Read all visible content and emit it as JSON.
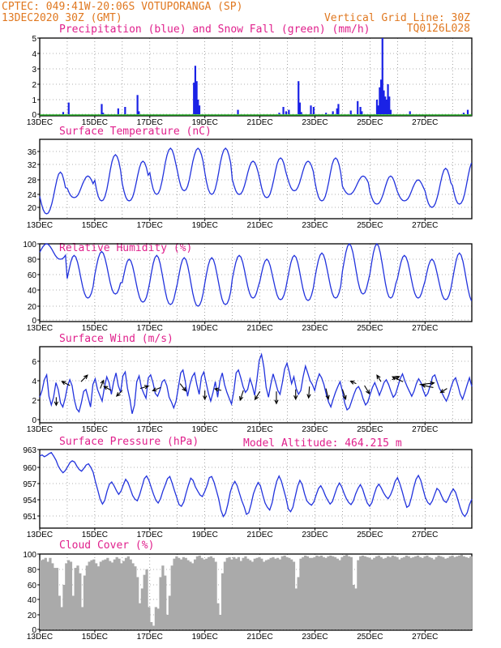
{
  "header": {
    "line1": "CPTEC:   049:41W-20:06S   VOTUPORANGA (SP)",
    "line2_left": "13DEC2020 30Z (GMT)",
    "line2_right": "Vertical Grid Line: 30Z",
    "code": "TQ0126L028"
  },
  "colors": {
    "header": "#e07820",
    "titles": "#e0208c",
    "rain": "#1a22e6",
    "snow": "#22aa22",
    "series": "#2233dd",
    "cloud": "#aaaaaa",
    "wind_arrow": "#000000"
  },
  "chart_data": [
    {
      "type": "bar",
      "title": "Precipitation (blue) and Snow Fall (green) (mm/h)",
      "x_ticks": [
        "13DEC",
        "15DEC",
        "17DEC",
        "19DEC",
        "21DEC",
        "23DEC",
        "25DEC",
        "27DEC"
      ],
      "ylim": [
        0,
        5
      ],
      "y_ticks": [
        "0",
        "1",
        "2",
        "3",
        "4",
        "5"
      ],
      "grid": true,
      "series": [
        {
          "name": "Precipitation",
          "values": [
            [
              0.85,
              0.15
            ],
            [
              1.05,
              0.8
            ],
            [
              2.25,
              0.7
            ],
            [
              2.3,
              0.1
            ],
            [
              2.85,
              0.4
            ],
            [
              3.1,
              0.5
            ],
            [
              3.55,
              1.3
            ],
            [
              3.6,
              0.2
            ],
            [
              5.6,
              2.1
            ],
            [
              5.65,
              3.2
            ],
            [
              5.7,
              2.2
            ],
            [
              5.75,
              1.0
            ],
            [
              5.8,
              0.6
            ],
            [
              7.2,
              0.3
            ],
            [
              8.7,
              0.1
            ],
            [
              8.85,
              0.5
            ],
            [
              8.95,
              0.2
            ],
            [
              9.05,
              0.3
            ],
            [
              9.4,
              2.2
            ],
            [
              9.45,
              0.8
            ],
            [
              9.5,
              0.15
            ],
            [
              9.85,
              0.6
            ],
            [
              9.95,
              0.5
            ],
            [
              10.4,
              0.1
            ],
            [
              10.65,
              0.2
            ],
            [
              10.8,
              0.4
            ],
            [
              10.85,
              0.7
            ],
            [
              11.3,
              0.25
            ],
            [
              11.55,
              0.9
            ],
            [
              11.65,
              0.5
            ],
            [
              11.7,
              0.2
            ],
            [
              12.25,
              1.0
            ],
            [
              12.3,
              0.6
            ],
            [
              12.35,
              1.8
            ],
            [
              12.4,
              2.3
            ],
            [
              12.45,
              5.0
            ],
            [
              12.5,
              1.6
            ],
            [
              12.55,
              1.2
            ],
            [
              12.6,
              1.0
            ],
            [
              12.65,
              2.0
            ],
            [
              12.7,
              1.2
            ],
            [
              12.75,
              0.3
            ],
            [
              13.45,
              0.2
            ],
            [
              15.4,
              0.1
            ],
            [
              15.55,
              0.3
            ]
          ]
        },
        {
          "name": "Snow Fall",
          "values": [
            [
              0,
              0
            ]
          ]
        }
      ]
    },
    {
      "type": "line",
      "title": "Surface Temperature (nC)",
      "x_ticks": [
        "13DEC",
        "15DEC",
        "17DEC",
        "19DEC",
        "21DEC",
        "23DEC",
        "25DEC",
        "27DEC"
      ],
      "ylim": [
        18,
        38
      ],
      "y_ticks": [
        "20",
        "24",
        "28",
        "32",
        "36"
      ],
      "grid": true,
      "series": [
        {
          "name": "Temperature",
          "min": [
            18,
            23,
            22,
            22,
            24,
            25,
            24,
            24,
            23,
            25,
            22,
            24,
            21,
            22,
            20,
            21
          ],
          "max": [
            30,
            29,
            35,
            33,
            37,
            37,
            37,
            33,
            34,
            33,
            34,
            29,
            29,
            28,
            31,
            33
          ]
        }
      ]
    },
    {
      "type": "line",
      "title": "Relative Humidity (%)",
      "x_ticks": [
        "13DEC",
        "15DEC",
        "17DEC",
        "19DEC",
        "21DEC",
        "23DEC",
        "25DEC",
        "27DEC"
      ],
      "ylim": [
        0,
        100
      ],
      "y_ticks": [
        "0",
        "20",
        "40",
        "60",
        "80",
        "100"
      ],
      "grid": true,
      "series": [
        {
          "name": "Relative Humidity",
          "min": [
            80,
            30,
            35,
            25,
            22,
            20,
            22,
            30,
            28,
            27,
            30,
            35,
            30,
            30,
            28,
            25
          ],
          "max": [
            100,
            85,
            90,
            80,
            85,
            82,
            82,
            85,
            80,
            85,
            88,
            100,
            100,
            85,
            80,
            88
          ]
        }
      ]
    },
    {
      "type": "line",
      "title": "Surface Wind (m/s)",
      "x_ticks": [
        "13DEC",
        "15DEC",
        "17DEC",
        "19DEC",
        "21DEC",
        "23DEC",
        "25DEC",
        "27DEC"
      ],
      "ylim": [
        -0.3,
        7
      ],
      "y_ticks": [
        "0",
        "2",
        "4",
        "6"
      ],
      "grid": true,
      "series": [
        {
          "name": "Wind speed",
          "values": [
            2.3,
            3.0,
            4.1,
            4.6,
            2.4,
            1.5,
            2.3,
            3.8,
            3.1,
            1.7,
            1.3,
            2.2,
            3.4,
            4.1,
            3.5,
            2.0,
            1.1,
            0.8,
            1.7,
            2.9,
            3.1,
            2.2,
            1.3,
            3.6,
            4.2,
            3.1,
            2.5,
            1.9,
            3.3,
            4.4,
            3.8,
            2.6,
            3.9,
            4.8,
            3.5,
            2.8,
            4.5,
            4.9,
            3.2,
            2.1,
            0.6,
            1.5,
            3.9,
            4.5,
            3.3,
            2.7,
            2.2,
            4.3,
            4.6,
            3.8,
            2.7,
            2.4,
            3.0,
            3.9,
            4.1,
            3.5,
            2.3,
            1.8,
            1.2,
            1.9,
            3.3,
            4.8,
            5.1,
            3.9,
            2.4,
            3.6,
            4.4,
            4.8,
            3.6,
            2.6,
            4.4,
            4.9,
            3.8,
            2.7,
            1.9,
            2.8,
            3.9,
            2.3,
            4.0,
            4.8,
            3.6,
            2.8,
            2.2,
            1.6,
            2.9,
            4.8,
            5.1,
            4.3,
            3.4,
            2.8,
            3.1,
            4.2,
            3.5,
            2.5,
            4.1,
            6.1,
            6.7,
            5.4,
            3.3,
            2.3,
            3.6,
            4.7,
            3.9,
            3.0,
            2.6,
            3.8,
            5.2,
            5.8,
            4.9,
            3.7,
            4.4,
            3.2,
            2.6,
            3.0,
            4.4,
            5.5,
            4.8,
            4.0,
            3.6,
            3.0,
            4.0,
            4.7,
            4.3,
            3.6,
            2.6,
            1.8,
            1.3,
            2.1,
            2.8,
            3.4,
            3.9,
            2.9,
            1.7,
            1.0,
            1.2,
            1.9,
            2.6,
            3.2,
            3.4,
            2.9,
            2.1,
            1.5,
            1.8,
            2.6,
            3.3,
            3.8,
            3.2,
            2.5,
            3.1,
            3.8,
            4.1,
            3.6,
            2.9,
            2.3,
            2.6,
            3.4,
            4.2,
            4.7,
            4.0,
            3.4,
            2.9,
            2.4,
            2.9,
            3.7,
            4.2,
            3.8,
            3.0,
            2.4,
            2.7,
            3.5,
            4.4,
            4.6,
            3.9,
            3.2,
            2.8,
            2.3,
            1.9,
            2.5,
            3.3,
            4.0,
            4.3,
            3.5,
            2.6,
            2.1,
            2.8,
            3.6,
            4.3,
            3.4
          ]
        }
      ]
    },
    {
      "type": "line",
      "title": "Surface Pressure (hPa)",
      "annotation": "Model Altitude: 464.215  m",
      "x_ticks": [
        "13DEC",
        "15DEC",
        "17DEC",
        "19DEC",
        "21DEC",
        "23DEC",
        "25DEC",
        "27DEC"
      ],
      "ylim": [
        949.5,
        963
      ],
      "y_ticks": [
        "951",
        "954",
        "957",
        "960",
        "963"
      ],
      "grid": true,
      "series": [
        {
          "name": "Pressure",
          "values": [
            961.9,
            962.1,
            961.8,
            962.0,
            962.3,
            962.5,
            961.9,
            961.2,
            960.2,
            959.5,
            959.0,
            959.4,
            960.1,
            960.8,
            961.1,
            960.9,
            960.2,
            959.6,
            959.3,
            959.8,
            960.4,
            960.6,
            960.0,
            959.1,
            957.3,
            955.8,
            954.1,
            953.2,
            953.9,
            955.6,
            956.9,
            957.3,
            956.6,
            955.7,
            955.0,
            955.6,
            956.8,
            957.8,
            957.2,
            956.0,
            954.8,
            954.1,
            953.8,
            954.9,
            956.4,
            957.9,
            958.4,
            957.6,
            956.3,
            955.0,
            953.9,
            953.4,
            954.2,
            955.6,
            956.7,
            957.9,
            958.3,
            957.1,
            955.7,
            954.4,
            953.1,
            952.8,
            953.6,
            955.2,
            956.7,
            958.0,
            957.6,
            956.4,
            955.6,
            954.9,
            954.6,
            955.5,
            956.6,
            958.1,
            958.3,
            957.3,
            955.8,
            954.2,
            952.1,
            950.9,
            951.5,
            953.2,
            955.4,
            956.7,
            957.4,
            956.6,
            955.2,
            953.8,
            952.7,
            951.3,
            951.6,
            953.2,
            955.1,
            956.3,
            957.2,
            956.6,
            954.9,
            953.4,
            952.6,
            952.1,
            953.4,
            955.6,
            957.4,
            958.4,
            957.5,
            955.9,
            954.3,
            952.3,
            951.8,
            952.6,
            954.6,
            956.5,
            957.6,
            956.8,
            955.1,
            953.8,
            953.3,
            953.0,
            953.6,
            954.9,
            956.1,
            956.6,
            955.8,
            954.7,
            953.9,
            953.2,
            953.7,
            955.0,
            956.3,
            957.1,
            956.4,
            955.2,
            954.2,
            953.5,
            953.1,
            953.8,
            955.1,
            956.1,
            956.8,
            956.0,
            954.6,
            953.4,
            952.8,
            953.5,
            955.0,
            956.3,
            956.9,
            956.2,
            955.3,
            954.6,
            954.2,
            954.9,
            956.0,
            957.4,
            958.1,
            957.0,
            955.6,
            954.0,
            952.6,
            952.9,
            954.4,
            956.3,
            957.8,
            958.5,
            957.6,
            956.0,
            954.4,
            953.5,
            953.1,
            953.8,
            955.0,
            956.1,
            955.7,
            954.7,
            953.8,
            953.5,
            954.3,
            955.3,
            956.0,
            955.4,
            954.0,
            952.5,
            951.4,
            950.9,
            951.6,
            953.1,
            954.1
          ]
        }
      ]
    },
    {
      "type": "bar",
      "title": "Cloud Cover (%)",
      "x_ticks": [
        "13DEC",
        "15DEC",
        "17DEC",
        "19DEC",
        "21DEC",
        "23DEC",
        "25DEC",
        "27DEC"
      ],
      "ylim": [
        0,
        100
      ],
      "y_ticks": [
        "0",
        "20",
        "40",
        "60",
        "80",
        "100"
      ],
      "grid": true,
      "series": [
        {
          "name": "Cloud Cover",
          "values": [
            92,
            93,
            95,
            90,
            95,
            88,
            82,
            82,
            45,
            30,
            60,
            88,
            92,
            90,
            45,
            82,
            85,
            75,
            30,
            72,
            85,
            90,
            92,
            93,
            88,
            84,
            90,
            92,
            93,
            95,
            91,
            89,
            93,
            96,
            94,
            88,
            91,
            95,
            97,
            93,
            88,
            84,
            70,
            35,
            55,
            73,
            80,
            30,
            10,
            5,
            30,
            28,
            70,
            85,
            72,
            20,
            45,
            85,
            94,
            97,
            95,
            93,
            96,
            95,
            92,
            90,
            88,
            93,
            97,
            98,
            95,
            93,
            94,
            96,
            97,
            95,
            90,
            35,
            20,
            75,
            90,
            95,
            96,
            93,
            96,
            94,
            96,
            91,
            95,
            97,
            94,
            92,
            90,
            94,
            95,
            96,
            94,
            90,
            92,
            93,
            95,
            96,
            94,
            95,
            93,
            97,
            98,
            96,
            95,
            93,
            90,
            55,
            70,
            94,
            96,
            98,
            97,
            95,
            95,
            96,
            98,
            97,
            98,
            96,
            95,
            97,
            98,
            97,
            96,
            94,
            92,
            96,
            98,
            99,
            97,
            96,
            60,
            55,
            92,
            97,
            98,
            97,
            96,
            95,
            93,
            95,
            97,
            98,
            96,
            94,
            95,
            97,
            96,
            98,
            97,
            96,
            93,
            95,
            96,
            98,
            97,
            95,
            96,
            97,
            98,
            96,
            95,
            97,
            98,
            96,
            95,
            93,
            96,
            98,
            97,
            96,
            94,
            95,
            97,
            98,
            96,
            97,
            98,
            99,
            97,
            96,
            95,
            97
          ]
        }
      ]
    }
  ]
}
